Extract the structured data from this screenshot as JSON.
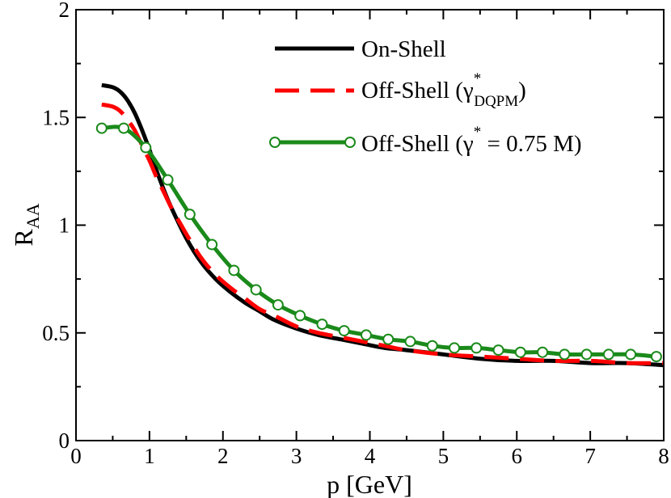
{
  "chart_data": {
    "type": "line",
    "xlabel": "p [GeV]",
    "ylabel": {
      "main": "R",
      "sub": "AA"
    },
    "xlim": [
      0,
      8
    ],
    "ylim": [
      0,
      2
    ],
    "xticks": [
      "0",
      "1",
      "2",
      "3",
      "4",
      "5",
      "6",
      "7",
      "8"
    ],
    "yticks": [
      "0",
      "0.5",
      "1",
      "1.5",
      "2"
    ],
    "legend_position": "top-right",
    "series": [
      {
        "name": "On-Shell",
        "legend": {
          "text": "On-Shell"
        },
        "color": "#000000",
        "style": "solid",
        "x": [
          0.35,
          0.5,
          0.6,
          0.7,
          0.8,
          0.9,
          1.0,
          1.1,
          1.2,
          1.3,
          1.5,
          1.7,
          1.9,
          2.1,
          2.3,
          2.5,
          2.7,
          3.0,
          3.3,
          3.6,
          3.9,
          4.2,
          4.5,
          5.0,
          5.5,
          6.0,
          6.5,
          7.0,
          7.5,
          8.0
        ],
        "y": [
          1.65,
          1.64,
          1.62,
          1.58,
          1.52,
          1.44,
          1.35,
          1.25,
          1.16,
          1.08,
          0.94,
          0.83,
          0.75,
          0.69,
          0.64,
          0.6,
          0.56,
          0.52,
          0.49,
          0.47,
          0.45,
          0.43,
          0.42,
          0.4,
          0.38,
          0.37,
          0.37,
          0.36,
          0.36,
          0.35
        ]
      },
      {
        "name": "Off-Shell (γ* DQPM)",
        "legend": {
          "text": "Off-Shell (γ",
          "sup": "*",
          "sub": "DQPM",
          "close": ")"
        },
        "color": "#ff0000",
        "style": "dashed",
        "x": [
          0.35,
          0.5,
          0.6,
          0.7,
          0.8,
          0.9,
          1.0,
          1.1,
          1.2,
          1.3,
          1.5,
          1.7,
          1.9,
          2.1,
          2.3,
          2.5,
          2.7,
          3.0,
          3.3,
          3.6,
          3.9,
          4.2,
          4.5,
          5.0,
          5.5,
          6.0,
          6.5,
          7.0,
          7.5,
          8.0
        ],
        "y": [
          1.56,
          1.55,
          1.53,
          1.49,
          1.44,
          1.37,
          1.3,
          1.22,
          1.15,
          1.08,
          0.96,
          0.85,
          0.77,
          0.71,
          0.66,
          0.61,
          0.58,
          0.53,
          0.5,
          0.48,
          0.46,
          0.44,
          0.42,
          0.4,
          0.39,
          0.38,
          0.37,
          0.37,
          0.36,
          0.36
        ]
      },
      {
        "name": "Off-Shell (γ* = 0.75 M)",
        "legend": {
          "text": "Off-Shell (γ",
          "sup": "*",
          "rest": " = 0.75 M)"
        },
        "color": "#1a8a1a",
        "style": "solid-markers",
        "x": [
          0.35,
          0.65,
          0.95,
          1.25,
          1.55,
          1.85,
          2.15,
          2.45,
          2.75,
          3.05,
          3.35,
          3.65,
          3.95,
          4.25,
          4.55,
          4.85,
          5.15,
          5.45,
          5.75,
          6.05,
          6.35,
          6.65,
          6.95,
          7.25,
          7.55,
          7.9
        ],
        "y": [
          1.45,
          1.45,
          1.36,
          1.21,
          1.05,
          0.91,
          0.79,
          0.7,
          0.63,
          0.58,
          0.54,
          0.51,
          0.49,
          0.47,
          0.46,
          0.44,
          0.43,
          0.43,
          0.42,
          0.41,
          0.41,
          0.4,
          0.4,
          0.4,
          0.4,
          0.39
        ]
      }
    ]
  }
}
